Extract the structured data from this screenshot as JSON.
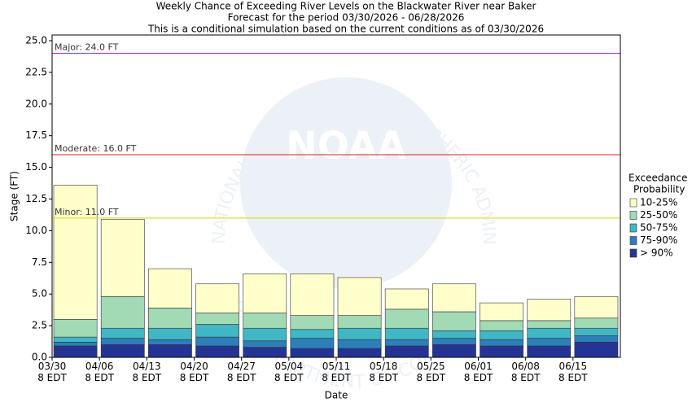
{
  "chart_data": {
    "type": "stacked_bar",
    "title": [
      "Weekly Chance of Exceeding River Levels on the Blackwater River near Baker",
      "Forecast for the period 03/30/2026 - 06/28/2026",
      "This is a conditional simulation based on the current conditions as of 03/30/2026"
    ],
    "x_label": "Date",
    "y_label": "Stage (FT)",
    "categories": [
      "03/30\n8 EDT",
      "04/06\n8 EDT",
      "04/13\n8 EDT",
      "04/20\n8 EDT",
      "04/27\n8 EDT",
      "05/04\n8 EDT",
      "05/11\n8 EDT",
      "05/18\n8 EDT",
      "05/25\n8 EDT",
      "06/01\n8 EDT",
      "06/08\n8 EDT",
      "06/15\n8 EDT"
    ],
    "series": [
      {
        "name": "> 90%",
        "color": "#253494",
        "values": [
          0.9,
          1.0,
          1.0,
          0.9,
          0.8,
          0.7,
          0.7,
          0.9,
          1.0,
          0.9,
          0.9,
          1.2
        ]
      },
      {
        "name": "75-90%",
        "color": "#2c7fb8",
        "values": [
          0.3,
          0.5,
          0.4,
          0.7,
          0.5,
          0.8,
          0.7,
          0.5,
          0.5,
          0.5,
          0.6,
          0.5
        ]
      },
      {
        "name": "50-75%",
        "color": "#41b6c4",
        "values": [
          0.4,
          0.8,
          0.9,
          1.0,
          1.0,
          0.7,
          0.9,
          0.9,
          0.6,
          0.7,
          0.8,
          0.6
        ]
      },
      {
        "name": "25-50%",
        "color": "#a1dab4",
        "values": [
          1.4,
          2.5,
          1.6,
          0.9,
          1.2,
          1.1,
          1.0,
          1.5,
          1.5,
          0.8,
          0.6,
          0.8
        ]
      },
      {
        "name": "10-25%",
        "color": "#ffffcc",
        "values": [
          10.6,
          6.1,
          3.1,
          2.3,
          3.1,
          3.3,
          3.0,
          1.6,
          2.2,
          1.4,
          1.7,
          1.7
        ]
      }
    ],
    "ylim": [
      0,
      25
    ],
    "yticks": [
      {
        "value": 0,
        "label": "0.0"
      },
      {
        "value": 2.5,
        "label": "2.5"
      },
      {
        "value": 5,
        "label": "5.0"
      },
      {
        "value": 7.5,
        "label": "7.5"
      },
      {
        "value": 10,
        "label": "10.0"
      },
      {
        "value": 12.5,
        "label": "12.5"
      },
      {
        "value": 15,
        "label": "15.0"
      },
      {
        "value": 17.5,
        "label": "17.5"
      },
      {
        "value": 20,
        "label": "20.0"
      },
      {
        "value": 22.5,
        "label": "22.5"
      },
      {
        "value": 25,
        "label": "25.0"
      }
    ],
    "thresholds": [
      {
        "label": "Major: 24.0 FT",
        "value": 24,
        "color": "#cc33cc"
      },
      {
        "label": "Moderate: 16.0 FT",
        "value": 16,
        "color": "#dd3333"
      },
      {
        "label": "Minor: 11.0 FT",
        "value": 11,
        "color": "#dddd33"
      }
    ],
    "legend_title": [
      "Exceedance",
      "Probability"
    ],
    "watermark": {
      "logo": "NOAA",
      "ring": "NATIONAL OCEANIC AND ATMOSPHERIC ADMINISTRATION",
      "ring_bottom": "U.S. DEPARTMENT OF COMMERCE"
    }
  }
}
